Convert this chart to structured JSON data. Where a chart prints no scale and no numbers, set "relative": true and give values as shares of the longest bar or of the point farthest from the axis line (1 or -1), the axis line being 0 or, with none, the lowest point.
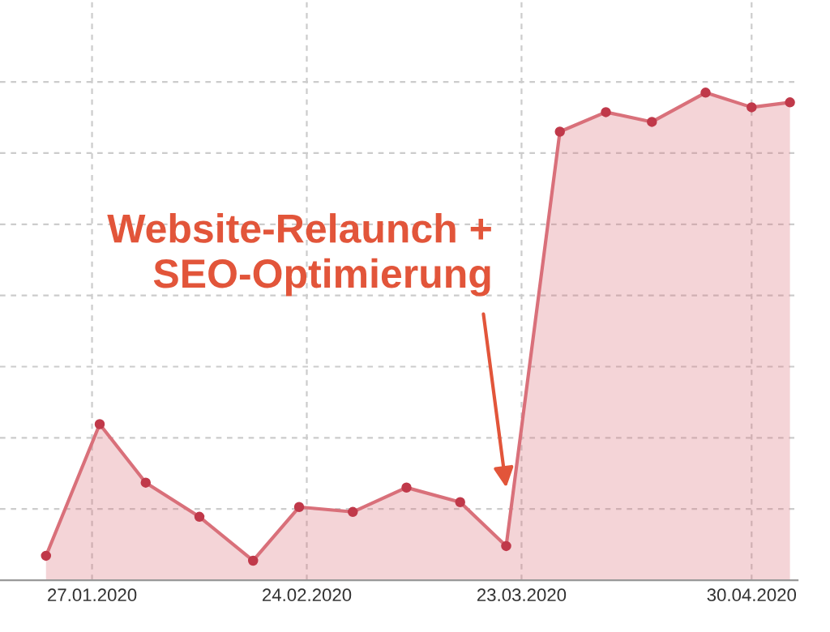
{
  "chart_data": {
    "type": "area",
    "relative": true,
    "x": [
      "2020-01-21",
      "2020-01-28",
      "2020-02-03",
      "2020-02-10",
      "2020-02-17",
      "2020-02-23",
      "2020-03-01",
      "2020-03-08",
      "2020-03-15",
      "2020-03-21",
      "2020-03-28",
      "2020-04-03",
      "2020-04-09",
      "2020-04-16",
      "2020-04-22",
      "2020-04-27"
    ],
    "series": [
      {
        "color": "#d9707a",
        "values": [
          0.05,
          0.32,
          0.2,
          0.13,
          0.04,
          0.15,
          0.14,
          0.19,
          0.16,
          0.07,
          0.92,
          0.96,
          0.94,
          1.0,
          0.97,
          0.98
        ]
      }
    ],
    "xlim": [
      "2020-01-15",
      "2020-04-28"
    ],
    "xticks": [
      {
        "value": "2020-01-27",
        "label": "27.01.2020"
      },
      {
        "value": "2020-02-24",
        "label": "24.02.2020"
      },
      {
        "value": "2020-03-23",
        "label": "23.03.2020"
      },
      {
        "value": "2020-04-22",
        "label": "30.04.2020"
      }
    ],
    "annotations": [
      {
        "text": "Website-Relaunch +\nSEO-Optimierung",
        "x": "2020-03-21",
        "y": 0.19
      }
    ],
    "grid": true,
    "marker": "circle",
    "tick_labels": "x"
  }
}
